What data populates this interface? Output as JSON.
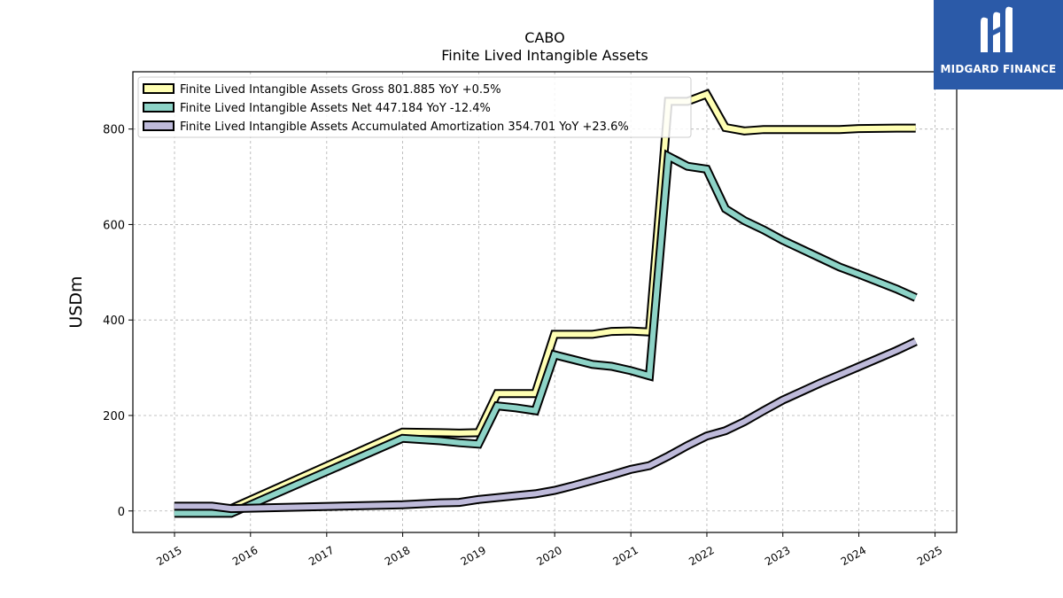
{
  "brand": {
    "name": "MIDGARD FINANCE",
    "logo_color": "#2b5aa8"
  },
  "chart_data": {
    "type": "line",
    "title": "CABO",
    "subtitle": "Finite Lived Intangible Assets",
    "xlabel": "",
    "ylabel": "USDm",
    "xlim": [
      "2014-06-15",
      "2025-04-15"
    ],
    "ylim": [
      -45,
      920
    ],
    "grid": true,
    "legend_position": "top-left",
    "x_ticks": [
      "2015",
      "2016",
      "2017",
      "2018",
      "2019",
      "2020",
      "2021",
      "2022",
      "2023",
      "2024",
      "2025"
    ],
    "y_ticks": [
      0,
      200,
      400,
      600,
      800
    ],
    "series": [
      {
        "name": "Finite Lived Intangible Assets Gross  801.885 YoY +0.5%",
        "color": "#ffffb3",
        "points": [
          [
            "2014-12-31",
            5
          ],
          [
            "2015-06-30",
            5
          ],
          [
            "2015-09-30",
            5
          ],
          [
            "2017-12-31",
            165
          ],
          [
            "2018-06-30",
            164
          ],
          [
            "2018-09-30",
            163
          ],
          [
            "2018-12-31",
            164
          ],
          [
            "2019-03-31",
            246
          ],
          [
            "2019-06-30",
            246
          ],
          [
            "2019-09-30",
            246
          ],
          [
            "2019-12-31",
            370
          ],
          [
            "2020-06-30",
            370
          ],
          [
            "2020-09-30",
            376
          ],
          [
            "2020-12-31",
            377
          ],
          [
            "2021-03-31",
            375
          ],
          [
            "2021-06-30",
            858
          ],
          [
            "2021-09-30",
            858
          ],
          [
            "2021-12-31",
            873
          ],
          [
            "2022-03-31",
            803
          ],
          [
            "2022-06-30",
            796
          ],
          [
            "2022-09-30",
            799
          ],
          [
            "2022-12-31",
            799
          ],
          [
            "2023-06-30",
            799
          ],
          [
            "2023-09-30",
            799
          ],
          [
            "2023-12-31",
            801
          ],
          [
            "2024-06-30",
            802
          ],
          [
            "2024-09-30",
            802
          ]
        ]
      },
      {
        "name": "Finite Lived Intangible Assets Net  447.184 YoY -12.4%",
        "color": "#8dd3c7",
        "points": [
          [
            "2014-12-31",
            -5
          ],
          [
            "2015-06-30",
            -5
          ],
          [
            "2015-09-30",
            -5
          ],
          [
            "2017-12-31",
            152
          ],
          [
            "2018-06-30",
            147
          ],
          [
            "2018-09-30",
            143
          ],
          [
            "2018-12-31",
            140
          ],
          [
            "2019-03-31",
            220
          ],
          [
            "2019-06-30",
            216
          ],
          [
            "2019-09-30",
            210
          ],
          [
            "2019-12-31",
            327
          ],
          [
            "2020-03-31",
            317
          ],
          [
            "2020-06-30",
            307
          ],
          [
            "2020-09-30",
            303
          ],
          [
            "2020-12-31",
            294
          ],
          [
            "2021-03-31",
            283
          ],
          [
            "2021-06-30",
            743
          ],
          [
            "2021-09-30",
            722
          ],
          [
            "2021-12-31",
            716
          ],
          [
            "2022-03-31",
            633
          ],
          [
            "2022-06-30",
            608
          ],
          [
            "2022-09-30",
            589
          ],
          [
            "2022-12-31",
            567
          ],
          [
            "2023-06-30",
            530
          ],
          [
            "2023-09-30",
            511
          ],
          [
            "2023-12-31",
            496
          ],
          [
            "2024-06-30",
            465
          ],
          [
            "2024-09-30",
            447
          ]
        ]
      },
      {
        "name": "Finite Lived Intangible Assets Accumulated Amortization  354.701 YoY +23.6%",
        "color": "#bebada",
        "points": [
          [
            "2014-12-31",
            10
          ],
          [
            "2015-06-30",
            10
          ],
          [
            "2015-09-30",
            5
          ],
          [
            "2017-12-31",
            13
          ],
          [
            "2018-06-30",
            17
          ],
          [
            "2018-09-30",
            18
          ],
          [
            "2018-12-31",
            24
          ],
          [
            "2019-03-31",
            28
          ],
          [
            "2019-06-30",
            32
          ],
          [
            "2019-09-30",
            36
          ],
          [
            "2019-12-31",
            43
          ],
          [
            "2020-03-31",
            53
          ],
          [
            "2020-06-30",
            64
          ],
          [
            "2020-09-30",
            75
          ],
          [
            "2020-12-31",
            87
          ],
          [
            "2021-03-31",
            95
          ],
          [
            "2021-06-30",
            115
          ],
          [
            "2021-09-30",
            137
          ],
          [
            "2021-12-31",
            157
          ],
          [
            "2022-03-31",
            168
          ],
          [
            "2022-06-30",
            187
          ],
          [
            "2022-09-30",
            210
          ],
          [
            "2022-12-31",
            232
          ],
          [
            "2023-06-30",
            268
          ],
          [
            "2023-09-30",
            285
          ],
          [
            "2023-12-31",
            302
          ],
          [
            "2024-06-30",
            336
          ],
          [
            "2024-09-30",
            355
          ]
        ]
      }
    ]
  }
}
